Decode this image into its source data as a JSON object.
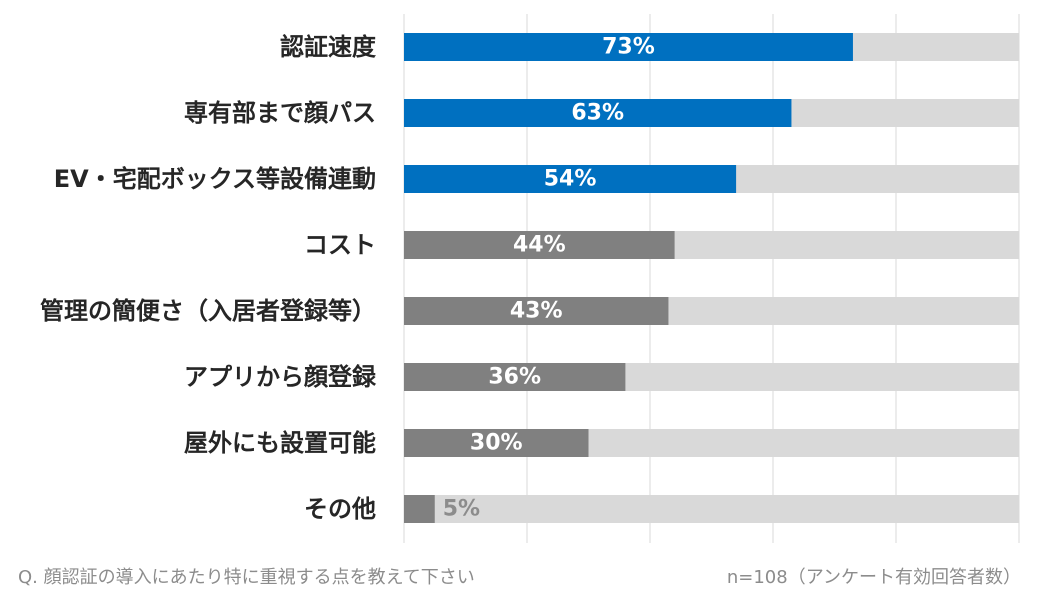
{
  "chart_data": {
    "type": "bar",
    "orientation": "horizontal",
    "categories": [
      "認証速度",
      "専有部まで顔パス",
      "EV・宅配ボックス等設備連動",
      "コスト",
      "管理の簡便さ（入居者登録等）",
      "アプリから顔登録",
      "屋外にも設置可能",
      "その他"
    ],
    "values": [
      73,
      63,
      54,
      44,
      43,
      36,
      30,
      5
    ],
    "value_labels": [
      "73%",
      "63%",
      "54%",
      "44%",
      "43%",
      "36%",
      "30%",
      "5%"
    ],
    "highlight_count": 3,
    "xlim": [
      0,
      100
    ],
    "grid": true,
    "title": "",
    "xlabel": "",
    "ylabel": ""
  },
  "colors": {
    "highlight": "#0070c0",
    "normal": "#808080",
    "track": "#d9d9d9",
    "grid": "#d9d9d9",
    "label": "#262626",
    "footer": "#8c8c8c"
  },
  "footer": {
    "question": "Q. 顔認証の導入にあたり特に重視する点を教えて下さい",
    "sample": "n=108（アンケート有効回答者数）"
  }
}
